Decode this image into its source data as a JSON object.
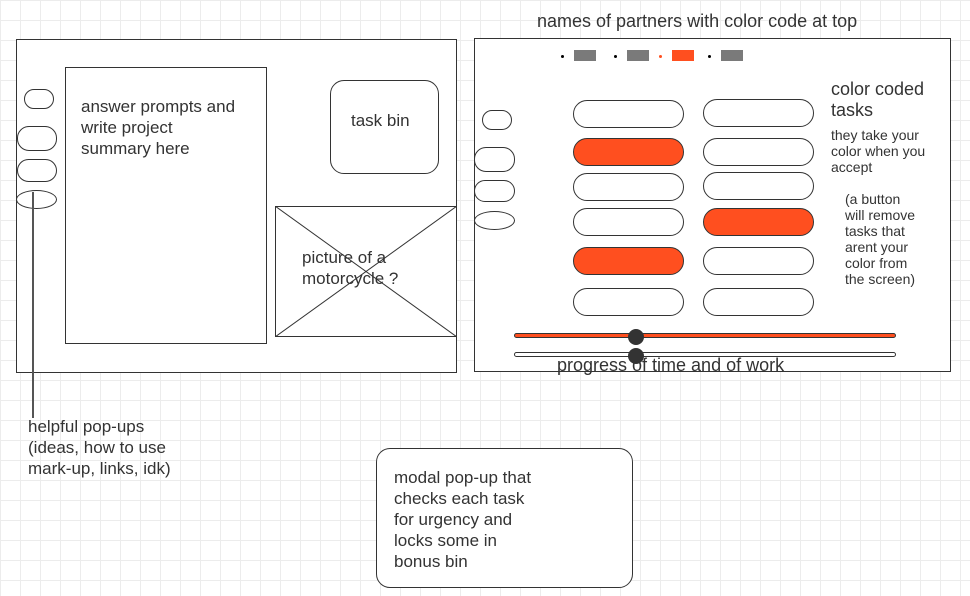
{
  "annotations": {
    "partners_note": "names of partners with color code at top",
    "popups_note": "helpful pop-ups\n(ideas, how to use\nmark-up, links, idk)",
    "modal_note": "modal pop-up that\nchecks each task\nfor urgency and\nlocks some in\nbonus bin"
  },
  "left_panel": {
    "summary_text": "answer prompts and\nwrite project\nsummary here",
    "task_bin_label": "task bin",
    "image_placeholder_label": "picture of a\nmotorcycle ?"
  },
  "right_panel": {
    "tasks_title": "color coded\ntasks",
    "tasks_desc": "they take your\ncolor when you\naccept",
    "remove_note": "(a button\nwill remove\ntasks that\narent your\ncolor from\nthe screen)",
    "progress_label": "progress of time and of work",
    "progress": {
      "time_fraction": 0.32,
      "work_fraction": 0.32
    },
    "task_grid": {
      "columns": 2,
      "orange_tasks": [
        "col1-row2",
        "col1-row5",
        "col2-row4"
      ]
    }
  },
  "colors": {
    "accent": "#ff4f1f",
    "partner_gray": "#7a7a7a",
    "outline": "#333333",
    "grid": "#ececec"
  },
  "partners": [
    {
      "swatch_color": "#7a7a7a",
      "dot_color": "#000000"
    },
    {
      "swatch_color": "#7a7a7a",
      "dot_color": "#000000"
    },
    {
      "swatch_color": "#ff4f1f",
      "dot_color": "#ff4f1f"
    },
    {
      "swatch_color": "#7a7a7a",
      "dot_color": "#000000"
    }
  ]
}
